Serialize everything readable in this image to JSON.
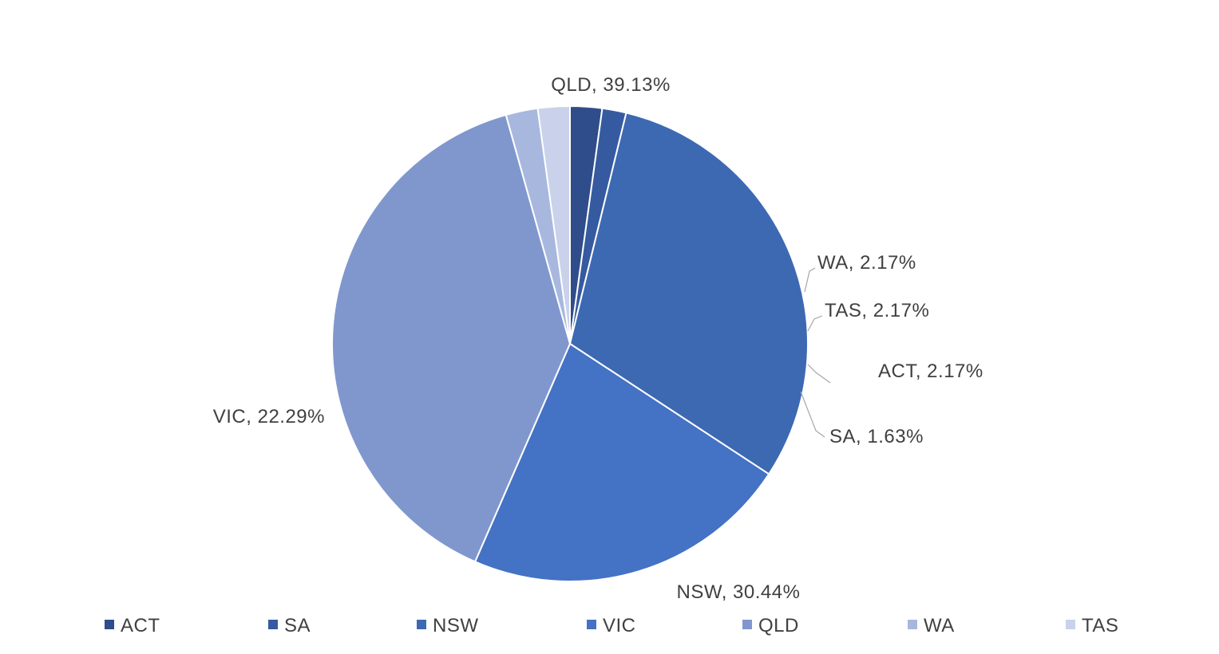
{
  "chart_data": {
    "type": "pie",
    "title": "",
    "start_angle_deg": 90,
    "direction": "clockwise",
    "slices": [
      {
        "label": "ACT",
        "value": 2.17,
        "display": "ACT, 2.17%",
        "color": "#2f4d8a"
      },
      {
        "label": "SA",
        "value": 1.63,
        "display": "SA, 1.63%",
        "color": "#355aa0"
      },
      {
        "label": "NSW",
        "value": 30.44,
        "display": "NSW, 30.44%",
        "color": "#3d69b3"
      },
      {
        "label": "VIC",
        "value": 22.29,
        "display": "VIC, 22.29%",
        "color": "#4472c4"
      },
      {
        "label": "QLD",
        "value": 39.13,
        "display": "QLD, 39.13%",
        "color": "#8097ce"
      },
      {
        "label": "WA",
        "value": 2.17,
        "display": "WA, 2.17%",
        "color": "#a8b7de"
      },
      {
        "label": "TAS",
        "value": 2.17,
        "display": "TAS, 2.17%",
        "color": "#c9d2ea"
      }
    ],
    "legend": {
      "position": "bottom",
      "entries": [
        "ACT",
        "SA",
        "NSW",
        "VIC",
        "QLD",
        "WA",
        "TAS"
      ]
    }
  }
}
